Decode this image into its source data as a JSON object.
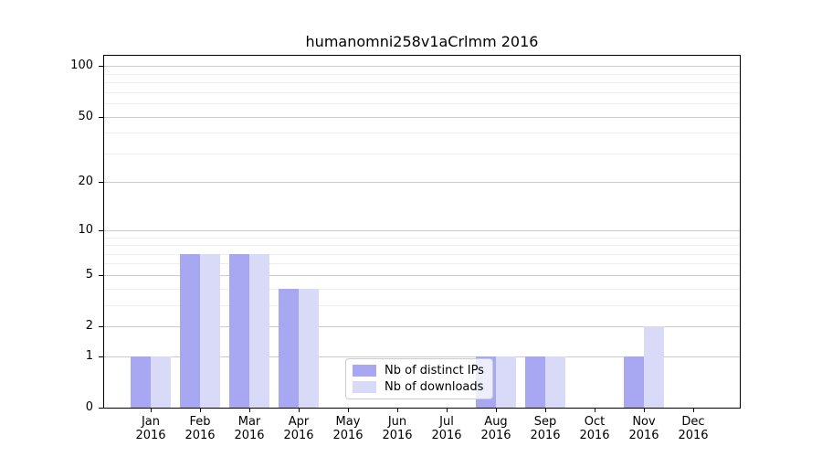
{
  "chart_data": {
    "type": "bar",
    "title": "humanomni258v1aCrlmm 2016",
    "categories": [
      "Jan",
      "Feb",
      "Mar",
      "Apr",
      "May",
      "Jun",
      "Jul",
      "Aug",
      "Sep",
      "Oct",
      "Nov",
      "Dec"
    ],
    "category_year": "2016",
    "series": [
      {
        "name": "Nb of distinct IPs",
        "color": "#a7a7f2",
        "values": [
          1,
          7,
          7,
          4,
          0,
          0,
          0,
          1,
          1,
          0,
          1,
          0
        ]
      },
      {
        "name": "Nb of downloads",
        "color": "#d9d9f8",
        "values": [
          1,
          7,
          7,
          4,
          0,
          0,
          0,
          1,
          1,
          0,
          2,
          0
        ]
      }
    ],
    "y_axis": {
      "scale": "log1p",
      "ticks": [
        0,
        1,
        2,
        5,
        10,
        20,
        50,
        100
      ],
      "minor_ticks": [
        3,
        4,
        6,
        7,
        8,
        9,
        30,
        40,
        60,
        70,
        80,
        90
      ],
      "ylim": [
        0,
        115
      ]
    },
    "grid": {
      "major_color": "#cccccc",
      "minor_color": "#ededed"
    },
    "legend_position": "bottom-center",
    "axis_color": "#000000"
  }
}
